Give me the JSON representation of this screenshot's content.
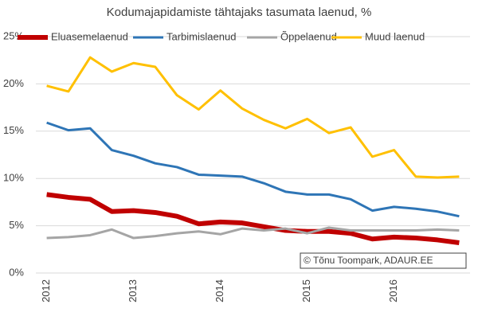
{
  "chart_data": {
    "type": "line",
    "title": "Kodumajapidamiste tähtajaks tasumata laenud, %",
    "categories": [
      "2012",
      null,
      null,
      null,
      "2013",
      null,
      null,
      null,
      "2014",
      null,
      null,
      null,
      "2015",
      null,
      null,
      null,
      "2016",
      null,
      null,
      null
    ],
    "series": [
      {
        "name": "Eluasemelaenud",
        "color": "#c00000",
        "width": 6,
        "values": [
          8.3,
          8.0,
          7.8,
          6.5,
          6.6,
          6.4,
          6.0,
          5.2,
          5.4,
          5.3,
          4.9,
          4.5,
          4.4,
          4.4,
          4.2,
          3.6,
          3.8,
          3.7,
          3.5,
          3.2
        ]
      },
      {
        "name": "Tarbimislaenud",
        "color": "#2e75b6",
        "width": 3,
        "values": [
          15.9,
          15.1,
          15.3,
          13.0,
          12.4,
          11.6,
          11.2,
          10.4,
          10.3,
          10.2,
          9.5,
          8.6,
          8.3,
          8.3,
          7.8,
          6.6,
          7.0,
          6.8,
          6.5,
          6.0
        ]
      },
      {
        "name": "Õppelaenud",
        "color": "#a5a5a5",
        "width": 3,
        "values": [
          3.7,
          3.8,
          4.0,
          4.6,
          3.7,
          3.9,
          4.2,
          4.4,
          4.1,
          4.7,
          4.5,
          4.7,
          4.2,
          4.8,
          4.5,
          4.5,
          4.5,
          4.5,
          4.6,
          4.5
        ]
      },
      {
        "name": "Muud laenud",
        "color": "#ffc000",
        "width": 3,
        "values": [
          19.8,
          19.2,
          22.8,
          21.3,
          22.2,
          21.8,
          18.8,
          17.3,
          19.3,
          17.4,
          16.2,
          15.3,
          16.3,
          14.8,
          15.4,
          12.3,
          13.0,
          10.2,
          10.1,
          10.2
        ]
      }
    ],
    "ylim": [
      0,
      25
    ],
    "yticks": [
      {
        "value": 0,
        "label": "0%"
      },
      {
        "value": 5,
        "label": "5%"
      },
      {
        "value": 10,
        "label": "10%"
      },
      {
        "value": 15,
        "label": "15%"
      },
      {
        "value": 20,
        "label": "20%"
      },
      {
        "value": 25,
        "label": "25%"
      }
    ],
    "grid": true,
    "legend": "top",
    "annotation": "© Tõnu Toompark, ADAUR.EE"
  }
}
